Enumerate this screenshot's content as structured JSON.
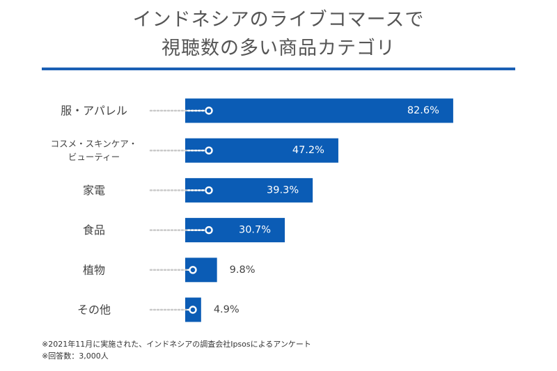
{
  "chart_data": {
    "type": "bar",
    "orientation": "horizontal",
    "title_lines": [
      "インドネシアのライブコマースで",
      "視聴数の多い商品カテゴリ"
    ],
    "categories": [
      [
        "服・アパレル"
      ],
      [
        "コスメ・スキンケア・",
        "ビューティー"
      ],
      [
        "家電"
      ],
      [
        "食品"
      ],
      [
        "植物"
      ],
      [
        "その他"
      ]
    ],
    "values": [
      82.6,
      47.2,
      39.3,
      30.7,
      9.8,
      4.9
    ],
    "value_labels": [
      "82.6%",
      "47.2%",
      "39.3%",
      "30.7%",
      "9.8%",
      "4.9%"
    ],
    "unit": "%",
    "xlim": [
      0,
      100
    ],
    "bar_color": "#0b5cb5",
    "label_color": "#444444"
  },
  "footnotes": [
    "※2021年11月に実施された、インドネシアの調査会社Ipsosによるアンケート",
    "※回答数：3,000人"
  ]
}
